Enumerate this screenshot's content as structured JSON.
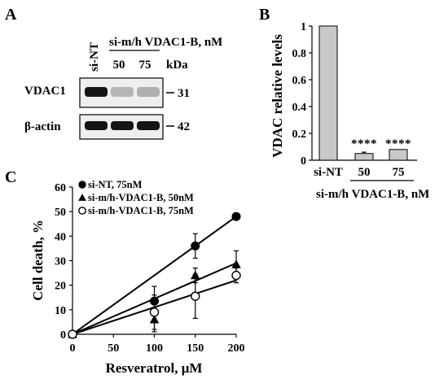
{
  "panels": {
    "a": {
      "letter": "A",
      "lane_header": "si-NT",
      "group_header": "si-m/h VDAC1-B, nM",
      "lanes": [
        "50",
        "75"
      ],
      "kda_label": "kDa",
      "rows": [
        {
          "label": "VDAC1",
          "marker": "31",
          "band_intensity": [
            1.0,
            0.25,
            0.28
          ]
        },
        {
          "label": "β-actin",
          "marker": "42",
          "band_intensity": [
            1.0,
            1.0,
            1.0
          ]
        }
      ]
    },
    "b": {
      "letter": "B",
      "group_label": "si-m/h VDAC1-B, nM",
      "significance": [
        "****",
        "****"
      ]
    },
    "c": {
      "letter": "C"
    }
  },
  "colors": {
    "bar_fill": "#c8c8c8",
    "ink": "#000000"
  },
  "chart_data": [
    {
      "type": "bar",
      "categories": [
        "si-NT",
        "50",
        "75"
      ],
      "values": [
        1.0,
        0.05,
        0.08
      ],
      "errors": [
        0,
        0.01,
        0
      ],
      "title": "",
      "xlabel": "",
      "ylabel": "VDAC  relative levels",
      "ylim": [
        0,
        1
      ],
      "yticks": [
        "0",
        "0.2",
        "0.4",
        "0.6",
        "0.8",
        "1"
      ]
    },
    {
      "type": "scatter",
      "xlabel": "Resveratrol, μM",
      "ylabel": "Cell death, %",
      "xlim": [
        0,
        200
      ],
      "ylim": [
        0,
        60
      ],
      "xticks": [
        "0",
        "50",
        "100",
        "150",
        "200"
      ],
      "yticks": [
        "0",
        "10",
        "20",
        "30",
        "40",
        "50",
        "60"
      ],
      "legend_position": "top-left",
      "series": [
        {
          "name": "si-NT, 75nM",
          "marker": "filled-circle",
          "x": [
            0,
            100,
            150,
            200
          ],
          "y": [
            0,
            13.5,
            36,
            48
          ],
          "err": [
            0,
            6,
            5,
            0
          ],
          "fit": [
            [
              0,
              0
            ],
            [
              200,
              48
            ]
          ]
        },
        {
          "name": "si-m/h-VDAC1-B, 50nM",
          "marker": "filled-triangle",
          "x": [
            0,
            100,
            150,
            200
          ],
          "y": [
            0,
            6,
            24,
            28.5
          ],
          "err": [
            0,
            5,
            3,
            5.5
          ],
          "fit": [
            [
              0,
              0
            ],
            [
              200,
              29
            ]
          ]
        },
        {
          "name": "si-m/h-VDAC1-B, 75nM",
          "marker": "open-circle",
          "x": [
            0,
            100,
            150,
            200
          ],
          "y": [
            0,
            9,
            15.5,
            24
          ],
          "err": [
            0,
            7,
            9,
            3
          ],
          "fit": [
            [
              0,
              0
            ],
            [
              200,
              22
            ]
          ]
        }
      ]
    }
  ]
}
